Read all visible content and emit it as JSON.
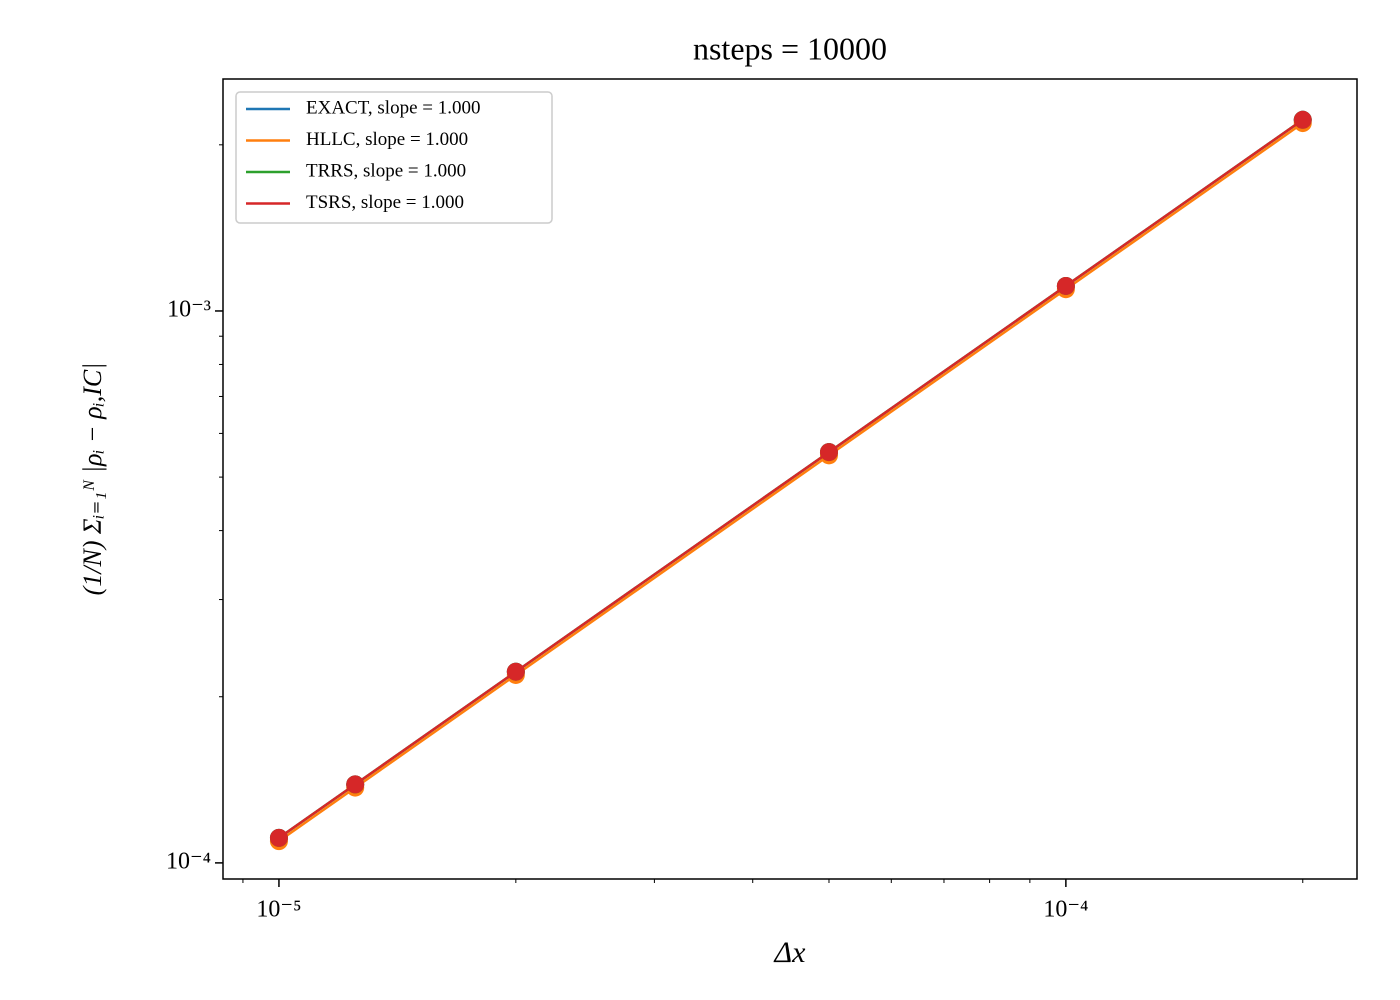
{
  "chart_data": {
    "type": "line",
    "title": "nsteps = 10000",
    "x_label": "Δx",
    "y_label": "(1/N) Σᵢ₌₁ᴺ |ρᵢ − ρᵢ,IC|",
    "x": [
      1e-05,
      1.25e-05,
      2e-05,
      5e-05,
      0.0001,
      0.0002
    ],
    "series": [
      {
        "name": "EXACT, slope = 1.000",
        "color": "#1f77b4",
        "values": [
          0.000111,
          0.00013875,
          0.000222,
          0.000555,
          0.00111,
          0.00222
        ]
      },
      {
        "name": "HLLC, slope = 1.000",
        "color": "#ff7f0e",
        "values": [
          0.0001095,
          0.0001369,
          0.000219,
          0.0005475,
          0.001095,
          0.00219
        ]
      },
      {
        "name": "TRRS, slope = 1.000",
        "color": "#2ca02c",
        "values": [
          0.000111,
          0.00013875,
          0.000222,
          0.000555,
          0.00111,
          0.00222
        ]
      },
      {
        "name": "TSRS, slope = 1.000",
        "color": "#d62728",
        "values": [
          0.000111,
          0.00013875,
          0.000222,
          0.000555,
          0.00111,
          0.00222
        ]
      }
    ],
    "xscale": "log",
    "yscale": "log",
    "xlim": [
      8.49e-06,
      0.0002344
    ],
    "ylim": [
      9.35e-05,
      0.002632
    ],
    "xticks": [
      {
        "value": 1e-05,
        "label": "10⁻⁵"
      },
      {
        "value": 0.0001,
        "label": "10⁻⁴"
      }
    ],
    "yticks": [
      {
        "value": 0.0001,
        "label": "10⁻⁴"
      },
      {
        "value": 0.001,
        "label": "10⁻³"
      }
    ],
    "xminorticks": [
      9e-06,
      2e-05,
      3e-05,
      4e-05,
      5e-05,
      6e-05,
      7e-05,
      8e-05,
      9e-05,
      0.0002
    ],
    "yminorticks": [
      0.0002,
      0.0003,
      0.0004,
      0.0005,
      0.0006,
      0.0007,
      0.0008,
      0.0009,
      0.002
    ],
    "grid": false,
    "legend": "upper left"
  }
}
